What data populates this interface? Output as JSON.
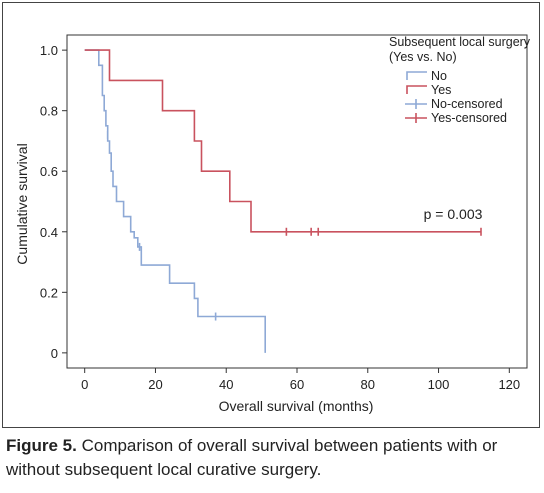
{
  "chart_data": {
    "type": "line",
    "subtype": "kaplan-meier",
    "xlabel": "Overall survival (months)",
    "ylabel": "Cumulative survival",
    "xlim": [
      -5,
      125
    ],
    "ylim": [
      -0.05,
      1.05
    ],
    "xticks": [
      "0",
      "20",
      "40",
      "60",
      "80",
      "100",
      "120"
    ],
    "yticks": [
      "0",
      "0.2",
      "0.4",
      "0.6",
      "0.8",
      "1.0"
    ],
    "legend_title": "Subsequent local surgery (Yes vs. No)",
    "legend_placement": "top-right",
    "annotation": "p = 0.003",
    "grid": false,
    "series": [
      {
        "name": "No",
        "color": "#8ea9d6",
        "steps": [
          [
            0,
            1.0
          ],
          [
            4,
            1.0
          ],
          [
            4,
            0.95
          ],
          [
            5,
            0.95
          ],
          [
            5,
            0.85
          ],
          [
            5.5,
            0.85
          ],
          [
            5.5,
            0.8
          ],
          [
            6,
            0.8
          ],
          [
            6,
            0.75
          ],
          [
            6.5,
            0.75
          ],
          [
            6.5,
            0.7
          ],
          [
            7,
            0.7
          ],
          [
            7,
            0.66
          ],
          [
            7.5,
            0.66
          ],
          [
            7.5,
            0.6
          ],
          [
            8,
            0.6
          ],
          [
            8,
            0.55
          ],
          [
            9,
            0.55
          ],
          [
            9,
            0.5
          ],
          [
            11,
            0.5
          ],
          [
            11,
            0.45
          ],
          [
            13,
            0.45
          ],
          [
            13,
            0.4
          ],
          [
            14,
            0.4
          ],
          [
            14,
            0.38
          ],
          [
            15,
            0.38
          ],
          [
            15,
            0.35
          ],
          [
            16,
            0.35
          ],
          [
            16,
            0.29
          ],
          [
            24,
            0.29
          ],
          [
            24,
            0.23
          ],
          [
            31,
            0.23
          ],
          [
            31,
            0.18
          ],
          [
            32,
            0.18
          ],
          [
            32,
            0.12
          ],
          [
            51,
            0.12
          ],
          [
            51,
            0
          ]
        ],
        "censored": [
          [
            6.5,
            0.72
          ],
          [
            15.5,
            0.35
          ],
          [
            37,
            0.12
          ]
        ]
      },
      {
        "name": "Yes",
        "color": "#c9525e",
        "steps": [
          [
            0,
            1.0
          ],
          [
            7,
            1.0
          ],
          [
            7,
            0.9
          ],
          [
            22,
            0.9
          ],
          [
            22,
            0.8
          ],
          [
            31,
            0.8
          ],
          [
            31,
            0.7
          ],
          [
            33,
            0.7
          ],
          [
            33,
            0.6
          ],
          [
            41,
            0.6
          ],
          [
            41,
            0.5
          ],
          [
            47,
            0.5
          ],
          [
            47,
            0.4
          ],
          [
            112,
            0.4
          ]
        ],
        "censored": [
          [
            57,
            0.4
          ],
          [
            64,
            0.4
          ],
          [
            66,
            0.4
          ],
          [
            112,
            0.4
          ]
        ]
      }
    ],
    "legend": [
      {
        "label": "No",
        "kind": "line",
        "series": 0
      },
      {
        "label": "Yes",
        "kind": "line",
        "series": 1
      },
      {
        "label": "No-censored",
        "kind": "censor",
        "series": 0
      },
      {
        "label": "Yes-censored",
        "kind": "censor",
        "series": 1
      }
    ]
  },
  "caption": {
    "label": "Figure 5.",
    "text": " Comparison of overall survival between patients with or without subsequent local curative surgery."
  }
}
